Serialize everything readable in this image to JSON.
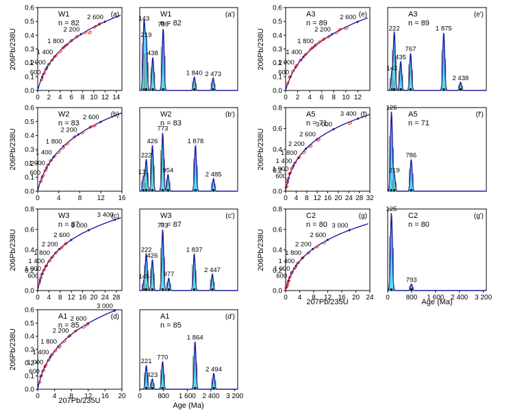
{
  "x_axis_label_concordia": "207Pb/235U",
  "y_axis_label_concordia": "206Pb/238U",
  "x_axis_label_kde": "Age (Ma)",
  "chart_data": [
    {
      "id": "a",
      "type": "scatter",
      "title": "W1",
      "n_label": "n = 82",
      "panel_label": "(a)",
      "xlim": [
        0,
        15
      ],
      "ylim": [
        0,
        0.6
      ],
      "xticks": [
        0,
        2,
        4,
        6,
        8,
        10,
        12,
        14
      ],
      "yticks": [
        0,
        0.1,
        0.2,
        0.3,
        0.4,
        0.5,
        0.6
      ],
      "concordia_ages": [
        600,
        1000,
        1400,
        1800,
        2200,
        2600
      ],
      "ellipses": [
        [
          0.7,
          0.078
        ],
        [
          1.1,
          0.12
        ],
        [
          1.5,
          0.155
        ],
        [
          2.0,
          0.19
        ],
        [
          2.6,
          0.22
        ],
        [
          3.2,
          0.25
        ],
        [
          4.0,
          0.28
        ],
        [
          4.6,
          0.31
        ],
        [
          5.2,
          0.33
        ],
        [
          6.0,
          0.36
        ],
        [
          7.0,
          0.39
        ],
        [
          8.5,
          0.42
        ],
        [
          9.3,
          0.42
        ],
        [
          10.2,
          0.46
        ],
        [
          11.0,
          0.48
        ]
      ]
    },
    {
      "id": "a2",
      "type": "area",
      "title": "W1",
      "n_label": "n = 82",
      "panel_label": "(a')",
      "xlim": [
        0,
        3300
      ],
      "ylim": [
        0,
        1
      ],
      "peaks": [
        [
          143,
          0.82
        ],
        [
          219,
          0.62
        ],
        [
          438,
          0.4
        ],
        [
          789,
          0.75
        ],
        [
          1840,
          0.16
        ],
        [
          2473,
          0.15
        ]
      ],
      "peak_labels": [
        "143",
        "219",
        "438",
        "789",
        "1 840",
        "2 473"
      ]
    },
    {
      "id": "b",
      "type": "scatter",
      "title": "W2",
      "n_label": "n = 83",
      "panel_label": "(b)",
      "xlim": [
        0,
        16
      ],
      "ylim": [
        0,
        0.6
      ],
      "xticks": [
        0,
        4,
        8,
        12,
        16
      ],
      "yticks": [
        0,
        0.1,
        0.2,
        0.3,
        0.4,
        0.5,
        0.6
      ],
      "concordia_ages": [
        600,
        1000,
        1400,
        1800,
        2200,
        2600
      ],
      "ellipses": [
        [
          0.6,
          0.07
        ],
        [
          1.0,
          0.11
        ],
        [
          1.5,
          0.15
        ],
        [
          2.0,
          0.19
        ],
        [
          2.5,
          0.22
        ],
        [
          3.2,
          0.25
        ],
        [
          4.0,
          0.28
        ],
        [
          4.8,
          0.31
        ],
        [
          5.6,
          0.34
        ],
        [
          7.0,
          0.39
        ],
        [
          8.5,
          0.42
        ],
        [
          10.0,
          0.46
        ],
        [
          10.8,
          0.47
        ]
      ]
    },
    {
      "id": "b2",
      "type": "area",
      "title": "W2",
      "n_label": "n = 83",
      "panel_label": "(b')",
      "xlim": [
        0,
        3300
      ],
      "ylim": [
        0,
        1
      ],
      "peaks": [
        [
          131,
          0.18
        ],
        [
          222,
          0.38
        ],
        [
          426,
          0.55
        ],
        [
          773,
          0.7
        ],
        [
          954,
          0.2
        ],
        [
          1878,
          0.55
        ],
        [
          2485,
          0.15
        ]
      ],
      "peak_labels": [
        "131",
        "222",
        "426",
        "773",
        "954",
        "1 878",
        "2 485"
      ]
    },
    {
      "id": "c",
      "type": "scatter",
      "title": "W3",
      "n_label": "n = 87",
      "panel_label": "(c)",
      "xlim": [
        0,
        30
      ],
      "ylim": [
        0,
        0.8
      ],
      "xticks": [
        0,
        4,
        8,
        12,
        16,
        20,
        24,
        28
      ],
      "yticks": [
        0,
        0.2,
        0.4,
        0.6,
        0.8
      ],
      "concordia_ages": [
        600,
        1000,
        1400,
        1800,
        2200,
        2600,
        3000,
        3400
      ],
      "ellipses": [
        [
          0.5,
          0.07
        ],
        [
          1.0,
          0.12
        ],
        [
          1.5,
          0.16
        ],
        [
          2.2,
          0.2
        ],
        [
          3.0,
          0.24
        ],
        [
          4.2,
          0.29
        ],
        [
          5.3,
          0.33
        ],
        [
          6.5,
          0.37
        ],
        [
          8.5,
          0.42
        ],
        [
          10.0,
          0.46
        ]
      ]
    },
    {
      "id": "c2",
      "type": "area",
      "title": "W3",
      "n_label": "n = 87",
      "panel_label": "(c')",
      "xlim": [
        0,
        3300
      ],
      "ylim": [
        0,
        1
      ],
      "peaks": [
        [
          145,
          0.12
        ],
        [
          222,
          0.45
        ],
        [
          426,
          0.38
        ],
        [
          773,
          0.75
        ],
        [
          977,
          0.15
        ],
        [
          1837,
          0.45
        ],
        [
          2447,
          0.2
        ]
      ],
      "peak_labels": [
        "145",
        "222",
        "426",
        "773",
        "977",
        "1 837",
        "2 447"
      ]
    },
    {
      "id": "d",
      "type": "scatter",
      "title": "A1",
      "n_label": "n = 85",
      "panel_label": "(d)",
      "xlim": [
        0,
        20
      ],
      "ylim": [
        0,
        0.6
      ],
      "xticks": [
        0,
        4,
        8,
        12,
        16,
        20
      ],
      "yticks": [
        0,
        0.1,
        0.2,
        0.3,
        0.4,
        0.5,
        0.6
      ],
      "concordia_ages": [
        600,
        1000,
        1400,
        1800,
        2200,
        2600,
        3000
      ],
      "ellipses": [
        [
          0.4,
          0.05
        ],
        [
          0.8,
          0.1
        ],
        [
          1.3,
          0.14
        ],
        [
          1.9,
          0.18
        ],
        [
          2.6,
          0.22
        ],
        [
          3.4,
          0.26
        ],
        [
          4.2,
          0.29
        ],
        [
          5.2,
          0.32
        ],
        [
          6.3,
          0.36
        ],
        [
          7.5,
          0.4
        ],
        [
          9.0,
          0.44
        ],
        [
          11.0,
          0.47
        ],
        [
          11.8,
          0.49
        ]
      ]
    },
    {
      "id": "d2",
      "type": "area",
      "title": "A1",
      "n_label": "n = 85",
      "panel_label": "(d')",
      "xlim": [
        0,
        3300
      ],
      "ylim": [
        0,
        1
      ],
      "xticks": [
        0,
        800,
        1600,
        2400,
        3200
      ],
      "xticklabels": [
        "0",
        "800",
        "1 600",
        "2 400",
        "3 200"
      ],
      "peaks": [
        [
          221,
          0.3
        ],
        [
          423,
          0.13
        ],
        [
          770,
          0.35
        ],
        [
          1864,
          0.6
        ],
        [
          2494,
          0.2
        ]
      ],
      "peak_labels": [
        "221",
        "423",
        "770",
        "1 864",
        "2 494"
      ]
    },
    {
      "id": "e",
      "type": "scatter",
      "title": "A3",
      "n_label": "n = 89",
      "panel_label": "(e)",
      "xlim": [
        0,
        14
      ],
      "ylim": [
        0,
        0.6
      ],
      "xticks": [
        0,
        2,
        4,
        6,
        8,
        10,
        12
      ],
      "yticks": [
        0,
        0.1,
        0.2,
        0.3,
        0.4,
        0.5,
        0.6
      ],
      "concordia_ages": [
        600,
        1000,
        1400,
        1800,
        2200,
        2600
      ],
      "ellipses": [
        [
          0.3,
          0.05
        ],
        [
          0.7,
          0.1
        ],
        [
          1.2,
          0.14
        ],
        [
          1.8,
          0.18
        ],
        [
          2.5,
          0.22
        ],
        [
          3.3,
          0.26
        ],
        [
          4.2,
          0.3
        ],
        [
          4.5,
          0.31
        ],
        [
          5.0,
          0.33
        ],
        [
          5.6,
          0.35
        ],
        [
          6.3,
          0.37
        ],
        [
          7.2,
          0.39
        ],
        [
          8.5,
          0.42
        ],
        [
          9.0,
          0.44
        ],
        [
          10.1,
          0.45
        ]
      ]
    },
    {
      "id": "e2",
      "type": "area",
      "title": "A3",
      "n_label": "n = 89",
      "panel_label": "(e')",
      "xlim": [
        0,
        3300
      ],
      "ylim": [
        0,
        1
      ],
      "peaks": [
        [
          143,
          0.22
        ],
        [
          222,
          0.7
        ],
        [
          435,
          0.35
        ],
        [
          767,
          0.45
        ],
        [
          1875,
          0.7
        ],
        [
          2438,
          0.1
        ]
      ],
      "peak_labels": [
        "143",
        "222",
        "435",
        "767",
        "1 875",
        "2 438"
      ]
    },
    {
      "id": "f",
      "type": "scatter",
      "title": "A5",
      "n_label": "n = 71",
      "panel_label": "(f)",
      "xlim": [
        0,
        32
      ],
      "ylim": [
        0,
        0.8
      ],
      "xticks": [
        0,
        4,
        8,
        12,
        16,
        20,
        24,
        28,
        32
      ],
      "yticks": [
        0,
        0.2,
        0.4,
        0.6,
        0.8
      ],
      "concordia_ages": [
        600,
        1000,
        1400,
        1800,
        2200,
        2600,
        3000,
        3400
      ],
      "ellipses": [
        [
          0.3,
          0.04
        ],
        [
          0.6,
          0.08
        ],
        [
          1.0,
          0.12
        ],
        [
          1.6,
          0.17
        ],
        [
          2.4,
          0.22
        ],
        [
          3.5,
          0.27
        ],
        [
          5.0,
          0.32
        ],
        [
          7.0,
          0.37
        ],
        [
          9.5,
          0.43
        ],
        [
          12.5,
          0.49
        ],
        [
          24.5,
          0.65
        ]
      ]
    },
    {
      "id": "f2",
      "type": "area",
      "title": "A5",
      "n_label": "n = 71",
      "panel_label": "(f')",
      "xlim": [
        0,
        3300
      ],
      "ylim": [
        0,
        1
      ],
      "peaks": [
        [
          126,
          0.95
        ],
        [
          219,
          0.2
        ],
        [
          786,
          0.38
        ]
      ],
      "peak_labels": [
        "126",
        "219",
        "786"
      ]
    },
    {
      "id": "g",
      "type": "scatter",
      "title": "C2",
      "n_label": "n = 80",
      "panel_label": "(g)",
      "xlim": [
        0,
        24
      ],
      "ylim": [
        0,
        0.8
      ],
      "xticks": [
        0,
        4,
        8,
        12,
        16,
        20,
        24
      ],
      "yticks": [
        0,
        0.2,
        0.4,
        0.6,
        0.8
      ],
      "concordia_ages": [
        600,
        1000,
        1400,
        1800,
        2200,
        2600,
        3000
      ],
      "ellipses": [
        [
          0.2,
          0.03
        ],
        [
          0.3,
          0.04
        ],
        [
          0.5,
          0.06
        ],
        [
          0.8,
          0.09
        ],
        [
          1.2,
          0.13
        ],
        [
          1.8,
          0.18
        ],
        [
          2.6,
          0.22
        ],
        [
          3.5,
          0.27
        ],
        [
          4.8,
          0.32
        ],
        [
          6.5,
          0.37
        ],
        [
          9.0,
          0.43
        ],
        [
          11.0,
          0.47
        ]
      ]
    },
    {
      "id": "g2",
      "type": "area",
      "title": "C2",
      "n_label": "n = 80",
      "panel_label": "(g')",
      "xlim": [
        0,
        3300
      ],
      "ylim": [
        0,
        1
      ],
      "xticks": [
        0,
        800,
        1600,
        2400,
        3200
      ],
      "xticklabels": [
        "0",
        "800",
        "1 600",
        "2 400",
        "3 200"
      ],
      "peaks": [
        [
          125,
          0.95
        ],
        [
          793,
          0.08
        ]
      ],
      "peak_labels": [
        "125",
        "793"
      ]
    }
  ]
}
